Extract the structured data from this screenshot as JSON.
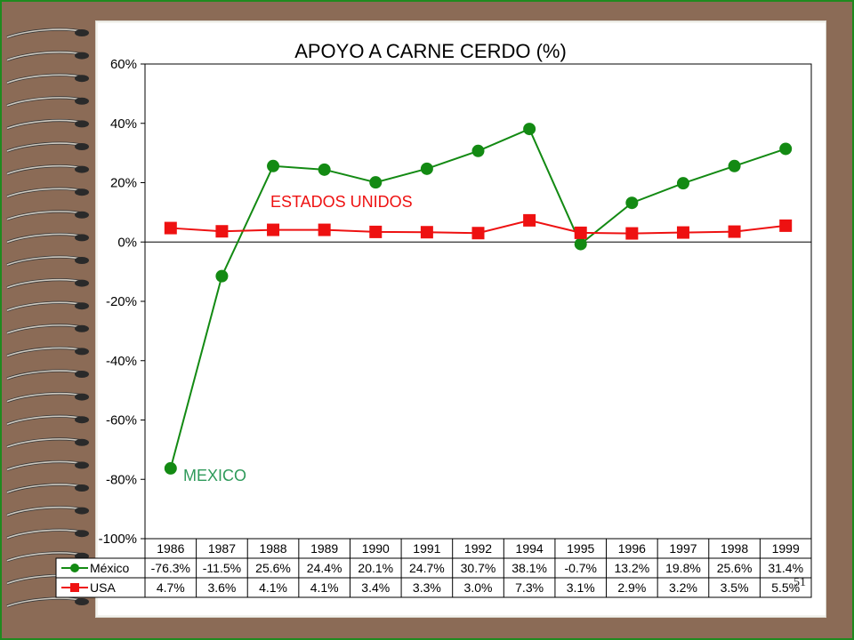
{
  "slide_number": "51",
  "chart_data": {
    "type": "line",
    "title": "APOYO A CARNE CERDO (%)",
    "categories": [
      "1986",
      "1987",
      "1988",
      "1989",
      "1990",
      "1991",
      "1992",
      "1994",
      "1995",
      "1996",
      "1997",
      "1998",
      "1999"
    ],
    "ylim": [
      -100,
      60
    ],
    "yticks": [
      60,
      40,
      20,
      0,
      -20,
      -40,
      -60,
      -80,
      -100
    ],
    "ytick_labels": [
      "60%",
      "40%",
      "20%",
      "0%",
      "-20%",
      "-40%",
      "-60%",
      "-80%",
      "-100%"
    ],
    "grid": false,
    "series": [
      {
        "name": "México",
        "color": "#138a13",
        "marker": "circle",
        "values": [
          -76.3,
          -11.5,
          25.6,
          24.4,
          20.1,
          24.7,
          30.7,
          38.1,
          -0.7,
          13.2,
          19.8,
          25.6,
          31.4
        ],
        "table_values": [
          "-76.3%",
          "-11.5%",
          "25.6%",
          "24.4%",
          "20.1%",
          "24.7%",
          "30.7%",
          "38.1%",
          "-0.7%",
          "13.2%",
          "19.8%",
          "25.6%",
          "31.4%"
        ]
      },
      {
        "name": "USA",
        "color": "#ee1111",
        "marker": "square",
        "values": [
          4.7,
          3.6,
          4.1,
          4.1,
          3.4,
          3.3,
          3.0,
          7.3,
          3.1,
          2.9,
          3.2,
          3.5,
          5.5
        ],
        "table_values": [
          "4.7%",
          "3.6%",
          "4.1%",
          "4.1%",
          "3.4%",
          "3.3%",
          "3.0%",
          "7.3%",
          "3.1%",
          "2.9%",
          "3.2%",
          "3.5%",
          "5.5%"
        ]
      }
    ],
    "annotations": [
      {
        "text": "ESTADOS UNIDOS",
        "color": "#ee1111",
        "series": "USA"
      },
      {
        "text": "MEXICO",
        "color": "#2e9a5a",
        "series": "México"
      }
    ]
  }
}
